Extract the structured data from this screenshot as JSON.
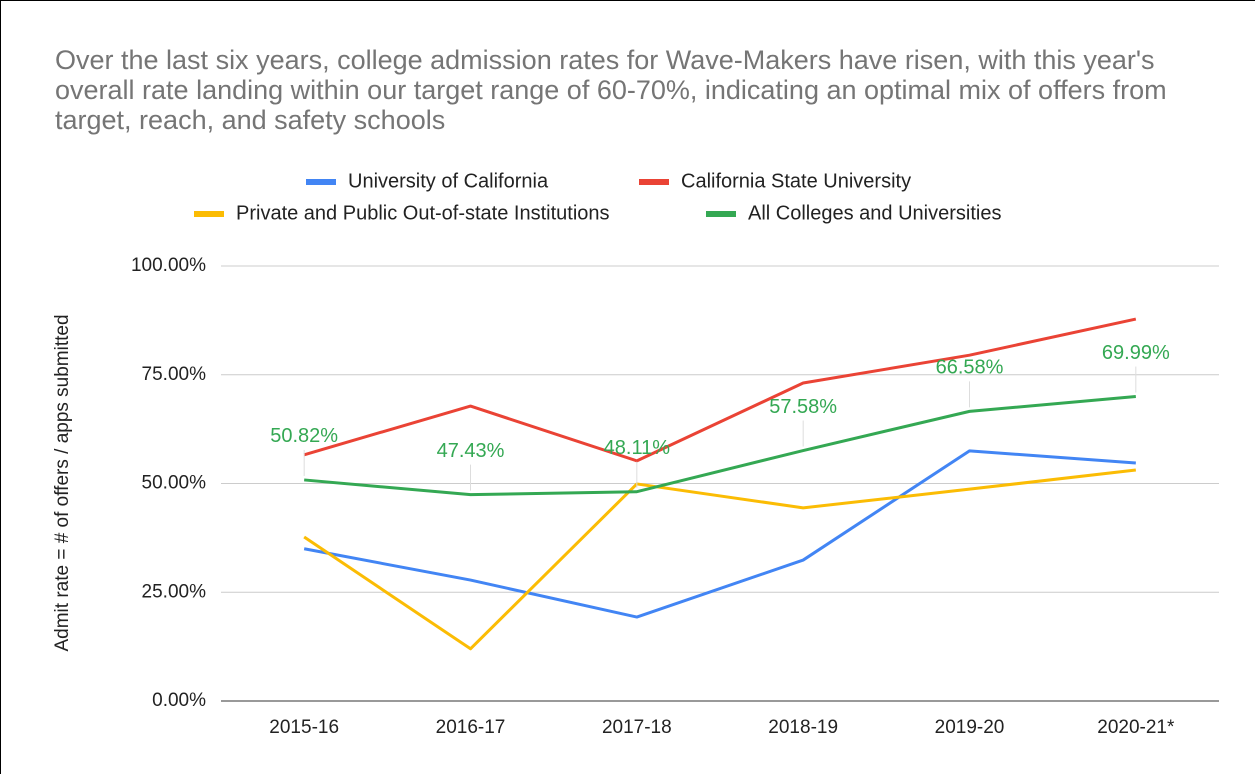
{
  "chart_data": {
    "type": "line",
    "title": "Over the last six years, college admission rates for Wave-Makers have risen, with this year's overall rate landing within our target range of 60-70%, indicating an optimal mix of offers from target, reach, and safety schools",
    "y_label": "Admit rate = # of offers / apps submitted",
    "categories": [
      "2015-16",
      "2016-17",
      "2017-18",
      "2018-19",
      "2019-20",
      "2020-21*"
    ],
    "series": [
      {
        "name": "University of California",
        "color": "#4285f4",
        "values": [
          35,
          27.8,
          19.3,
          32.4,
          57.5,
          54.7
        ]
      },
      {
        "name": "California State University",
        "color": "#ea4335",
        "values": [
          56.6,
          67.8,
          55.2,
          73.1,
          79.5,
          87.8
        ]
      },
      {
        "name": "Private and Public Out-of-state Institutions",
        "color": "#fbbc04",
        "values": [
          37.7,
          12,
          49.9,
          44.4,
          48.7,
          53.1
        ]
      },
      {
        "name": "All Colleges and Universities",
        "color": "#34a853",
        "values": [
          50.82,
          47.43,
          48.11,
          57.58,
          66.58,
          69.99
        ],
        "value_labels": [
          "50.82%",
          "47.43%",
          "48.11%",
          "57.58%",
          "66.58%",
          "69.99%"
        ]
      }
    ],
    "ylim": [
      0,
      100
    ],
    "yticks": [
      {
        "value": 0,
        "label": "0.00%"
      },
      {
        "value": 25,
        "label": "25.00%"
      },
      {
        "value": 50,
        "label": "50.00%"
      },
      {
        "value": 75,
        "label": "75.00%"
      },
      {
        "value": 100,
        "label": "100.00%"
      }
    ],
    "grid": true,
    "legend": "top"
  }
}
